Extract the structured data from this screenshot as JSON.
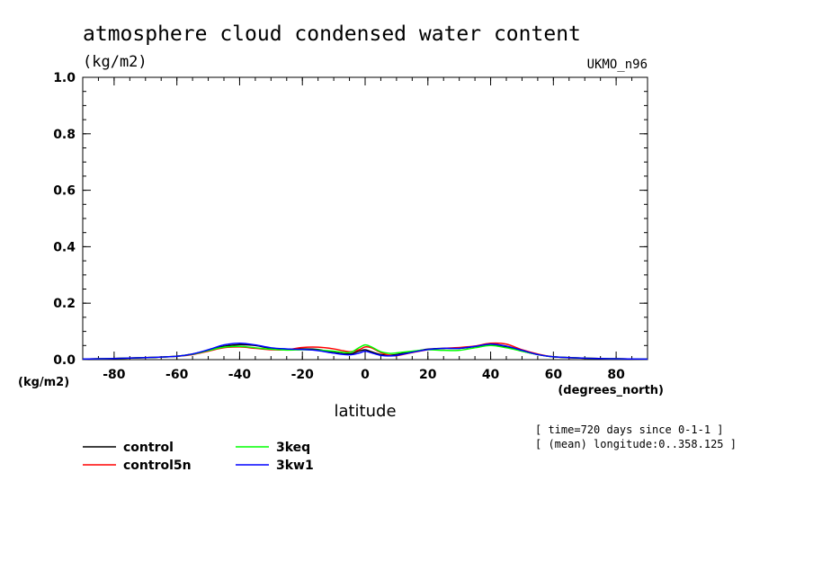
{
  "chart_data": {
    "type": "line",
    "title": "atmosphere cloud condensed water content",
    "units": "(kg/m2)",
    "model": "UKMO_n96",
    "xlabel": "latitude",
    "xunits": "(degrees_north)",
    "ylabel_units": "(kg/m2)",
    "xlim": [
      -90,
      90
    ],
    "ylim": [
      0,
      1
    ],
    "xticks": [
      -80,
      -60,
      -40,
      -20,
      0,
      20,
      40,
      60,
      80
    ],
    "xtick_labels": [
      "-80",
      "-60",
      "-40",
      "-20",
      "0",
      "20",
      "40",
      "60",
      "80"
    ],
    "yticks": [
      0,
      0.2,
      0.4,
      0.6,
      0.8,
      1.0
    ],
    "ytick_labels": [
      "0.0",
      "0.2",
      "0.4",
      "0.6",
      "0.8",
      "1.0"
    ],
    "x": [
      -90,
      -80,
      -70,
      -60,
      -55,
      -50,
      -45,
      -40,
      -35,
      -30,
      -25,
      -20,
      -15,
      -10,
      -5,
      -2,
      0,
      2,
      5,
      8,
      10,
      15,
      20,
      25,
      30,
      35,
      40,
      45,
      50,
      55,
      60,
      70,
      80,
      90
    ],
    "series": [
      {
        "name": "control",
        "color": "#000000",
        "values": [
          0.002,
          0.004,
          0.007,
          0.012,
          0.02,
          0.033,
          0.047,
          0.053,
          0.05,
          0.04,
          0.037,
          0.038,
          0.036,
          0.025,
          0.02,
          0.03,
          0.035,
          0.028,
          0.018,
          0.016,
          0.018,
          0.028,
          0.037,
          0.04,
          0.04,
          0.046,
          0.052,
          0.045,
          0.03,
          0.018,
          0.01,
          0.005,
          0.003,
          0.002
        ]
      },
      {
        "name": "control5n",
        "color": "#ff0000",
        "values": [
          0.002,
          0.004,
          0.007,
          0.012,
          0.018,
          0.03,
          0.042,
          0.045,
          0.04,
          0.035,
          0.035,
          0.043,
          0.044,
          0.038,
          0.028,
          0.035,
          0.045,
          0.042,
          0.025,
          0.015,
          0.014,
          0.025,
          0.035,
          0.04,
          0.043,
          0.048,
          0.058,
          0.055,
          0.035,
          0.02,
          0.01,
          0.005,
          0.003,
          0.002
        ]
      },
      {
        "name": "3keq",
        "color": "#00ff00",
        "values": [
          0.002,
          0.004,
          0.007,
          0.012,
          0.019,
          0.032,
          0.044,
          0.047,
          0.042,
          0.037,
          0.034,
          0.035,
          0.034,
          0.03,
          0.025,
          0.042,
          0.052,
          0.045,
          0.028,
          0.022,
          0.024,
          0.03,
          0.035,
          0.033,
          0.033,
          0.042,
          0.05,
          0.042,
          0.03,
          0.018,
          0.01,
          0.005,
          0.003,
          0.002
        ]
      },
      {
        "name": "3kw1",
        "color": "#0000ff",
        "values": [
          0.002,
          0.004,
          0.007,
          0.012,
          0.02,
          0.035,
          0.052,
          0.058,
          0.052,
          0.042,
          0.038,
          0.036,
          0.032,
          0.023,
          0.017,
          0.023,
          0.03,
          0.024,
          0.015,
          0.013,
          0.015,
          0.026,
          0.036,
          0.04,
          0.04,
          0.047,
          0.055,
          0.048,
          0.033,
          0.018,
          0.01,
          0.005,
          0.003,
          0.002
        ]
      }
    ],
    "notes": [
      "[ time=720 days since 0-1-1 ]",
      "[ (mean) longitude:0..358.125 ]"
    ],
    "grid": false,
    "legend_position": "bottom-left"
  }
}
